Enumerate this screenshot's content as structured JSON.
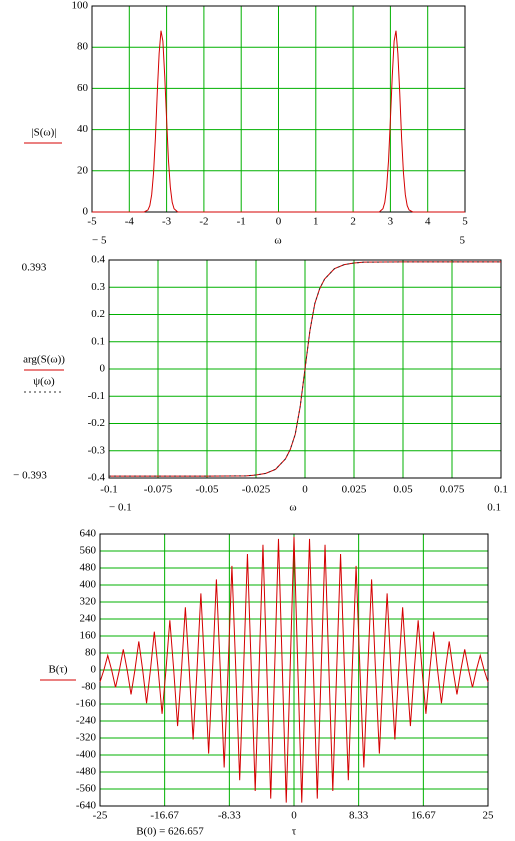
{
  "chart_data": [
    {
      "type": "line",
      "xlabel": "ω",
      "ylabel": "|S(ω)|",
      "xlim": [
        -5,
        5
      ],
      "xlim_labels": [
        "− 5",
        "5"
      ],
      "ylim": [
        0,
        100
      ],
      "yticks": [
        0,
        20,
        40,
        60,
        80,
        100
      ],
      "xticks": [
        -5,
        -4,
        -3,
        -2,
        -1,
        0,
        1,
        2,
        3,
        4,
        5
      ],
      "grid": true,
      "x": [
        -5,
        -4,
        -3.6,
        -3.5,
        -3.45,
        -3.4,
        -3.35,
        -3.3,
        -3.25,
        -3.2,
        -3.15,
        -3.1,
        -3.05,
        -3.0,
        -2.95,
        -2.9,
        -2.85,
        -2.8,
        -2.7,
        -2,
        0,
        2,
        2.7,
        2.8,
        2.85,
        2.9,
        2.95,
        3.0,
        3.05,
        3.1,
        3.15,
        3.2,
        3.25,
        3.3,
        3.35,
        3.4,
        3.45,
        3.5,
        3.6,
        4,
        5
      ],
      "series": [
        {
          "name": "|S(ω)|",
          "color": "#d40000",
          "dash": false,
          "values": [
            0,
            0,
            0,
            1,
            3.1,
            8.4,
            19,
            36,
            58,
            77,
            88,
            83,
            66,
            45,
            25,
            12,
            4.7,
            1.6,
            0,
            0,
            0,
            0,
            0,
            1.6,
            4.7,
            12,
            25,
            45,
            66,
            83,
            88,
            77,
            58,
            36,
            19,
            8.4,
            3.1,
            1,
            0,
            0,
            0
          ]
        }
      ]
    },
    {
      "type": "line",
      "xlabel": "ω",
      "xlim": [
        -0.1,
        0.1
      ],
      "xlim_labels": [
        "− 0.1",
        "0.1"
      ],
      "annotations": [
        "0.393",
        "− 0.393"
      ],
      "ylim": [
        -0.4,
        0.4
      ],
      "yticks": [
        -0.4,
        -0.3,
        -0.2,
        -0.1,
        0,
        0.1,
        0.2,
        0.3,
        0.4
      ],
      "xticks": [
        -0.1,
        -0.075,
        -0.05,
        -0.025,
        0,
        0.025,
        0.05,
        0.075,
        0.1
      ],
      "grid": true,
      "x": [
        -0.1,
        -0.05,
        -0.03,
        -0.025,
        -0.02,
        -0.015,
        -0.01,
        -0.0075,
        -0.005,
        -0.0025,
        0,
        0.0025,
        0.005,
        0.0075,
        0.01,
        0.015,
        0.02,
        0.025,
        0.03,
        0.05,
        0.1
      ],
      "series": [
        {
          "name": "arg(S(ω))",
          "color": "#d40000",
          "dash": false,
          "values": [
            -0.393,
            -0.393,
            -0.392,
            -0.389,
            -0.383,
            -0.368,
            -0.33,
            -0.295,
            -0.24,
            -0.14,
            0,
            0.14,
            0.24,
            0.295,
            0.33,
            0.368,
            0.383,
            0.389,
            0.392,
            0.393,
            0.393
          ]
        },
        {
          "name": "ψ(ω)",
          "color": "#303030",
          "dash": true,
          "values": [
            -0.393,
            -0.393,
            -0.392,
            -0.389,
            -0.383,
            -0.368,
            -0.33,
            -0.295,
            -0.24,
            -0.14,
            0,
            0.14,
            0.24,
            0.295,
            0.33,
            0.368,
            0.383,
            0.389,
            0.392,
            0.393,
            0.393
          ]
        }
      ]
    },
    {
      "type": "line",
      "xlabel": "τ",
      "ylabel": "B(τ)",
      "annotations": [
        "B(0) = 626.657"
      ],
      "xlim": [
        -25,
        25
      ],
      "ylim": [
        -640,
        640
      ],
      "yticks": [
        -640,
        -560,
        -480,
        -400,
        -320,
        -240,
        -160,
        -80,
        0,
        80,
        160,
        240,
        320,
        400,
        480,
        560,
        640
      ],
      "xticks": [
        -25,
        -16.67,
        -8.33,
        0,
        8.33,
        16.67,
        25
      ],
      "grid": true,
      "x": [
        -25,
        -24.5,
        -24,
        -23.5,
        -23,
        -22.5,
        -22,
        -21.5,
        -21,
        -20.5,
        -20,
        -19.5,
        -19,
        -18.5,
        -18,
        -17.5,
        -17,
        -16.5,
        -16,
        -15.5,
        -15,
        -14.5,
        -14,
        -13.5,
        -13,
        -12.5,
        -12,
        -11.5,
        -11,
        -10.5,
        -10,
        -9.5,
        -9,
        -8.5,
        -8,
        -7.5,
        -7,
        -6.5,
        -6,
        -5.5,
        -5,
        -4.5,
        -4,
        -3.5,
        -3,
        -2.5,
        -2,
        -1.5,
        -1,
        -0.5,
        0,
        0.5,
        1,
        1.5,
        2,
        2.5,
        3,
        3.5,
        4,
        4.5,
        5,
        5.5,
        6,
        6.5,
        7,
        7.5,
        8,
        8.5,
        9,
        9.5,
        10,
        10.5,
        11,
        11.5,
        12,
        12.5,
        13,
        13.5,
        14,
        14.5,
        15,
        15.5,
        16,
        16.5,
        17,
        17.5,
        18,
        18.5,
        19,
        19.5,
        20,
        20.5,
        21,
        21.5,
        22,
        22.5,
        23,
        23.5,
        24,
        24.5,
        25
      ],
      "series": [
        {
          "name": "B(τ)",
          "color": "#d40000",
          "dash": false,
          "values": [
            -56.6,
            0,
            68.4,
            0,
            -81.9,
            0,
            97.4,
            0,
            -114.9,
            0,
            134.6,
            0,
            -156.3,
            0,
            180.2,
            0,
            -206.2,
            0,
            234.1,
            0,
            -263.8,
            0,
            294.9,
            0,
            -327.1,
            0,
            360.2,
            0,
            -393.5,
            0,
            426.6,
            0,
            -458.9,
            0,
            489.9,
            0,
            -519,
            0,
            545.7,
            0,
            -569.2,
            0,
            589.3,
            0,
            -605.3,
            0,
            617.1,
            0,
            -624.3,
            0,
            626.7,
            0,
            -624.3,
            0,
            617.1,
            0,
            -605.3,
            0,
            589.3,
            0,
            -569.2,
            0,
            545.7,
            0,
            -519,
            0,
            489.9,
            0,
            -458.9,
            0,
            426.6,
            0,
            -393.5,
            0,
            360.2,
            0,
            -327.1,
            0,
            294.9,
            0,
            -263.8,
            0,
            234.1,
            0,
            -206.2,
            0,
            180.2,
            0,
            -156.3,
            0,
            134.6,
            0,
            -114.9,
            0,
            97.4,
            0,
            -81.9,
            0,
            68.4,
            0,
            -56.6
          ]
        }
      ]
    }
  ]
}
